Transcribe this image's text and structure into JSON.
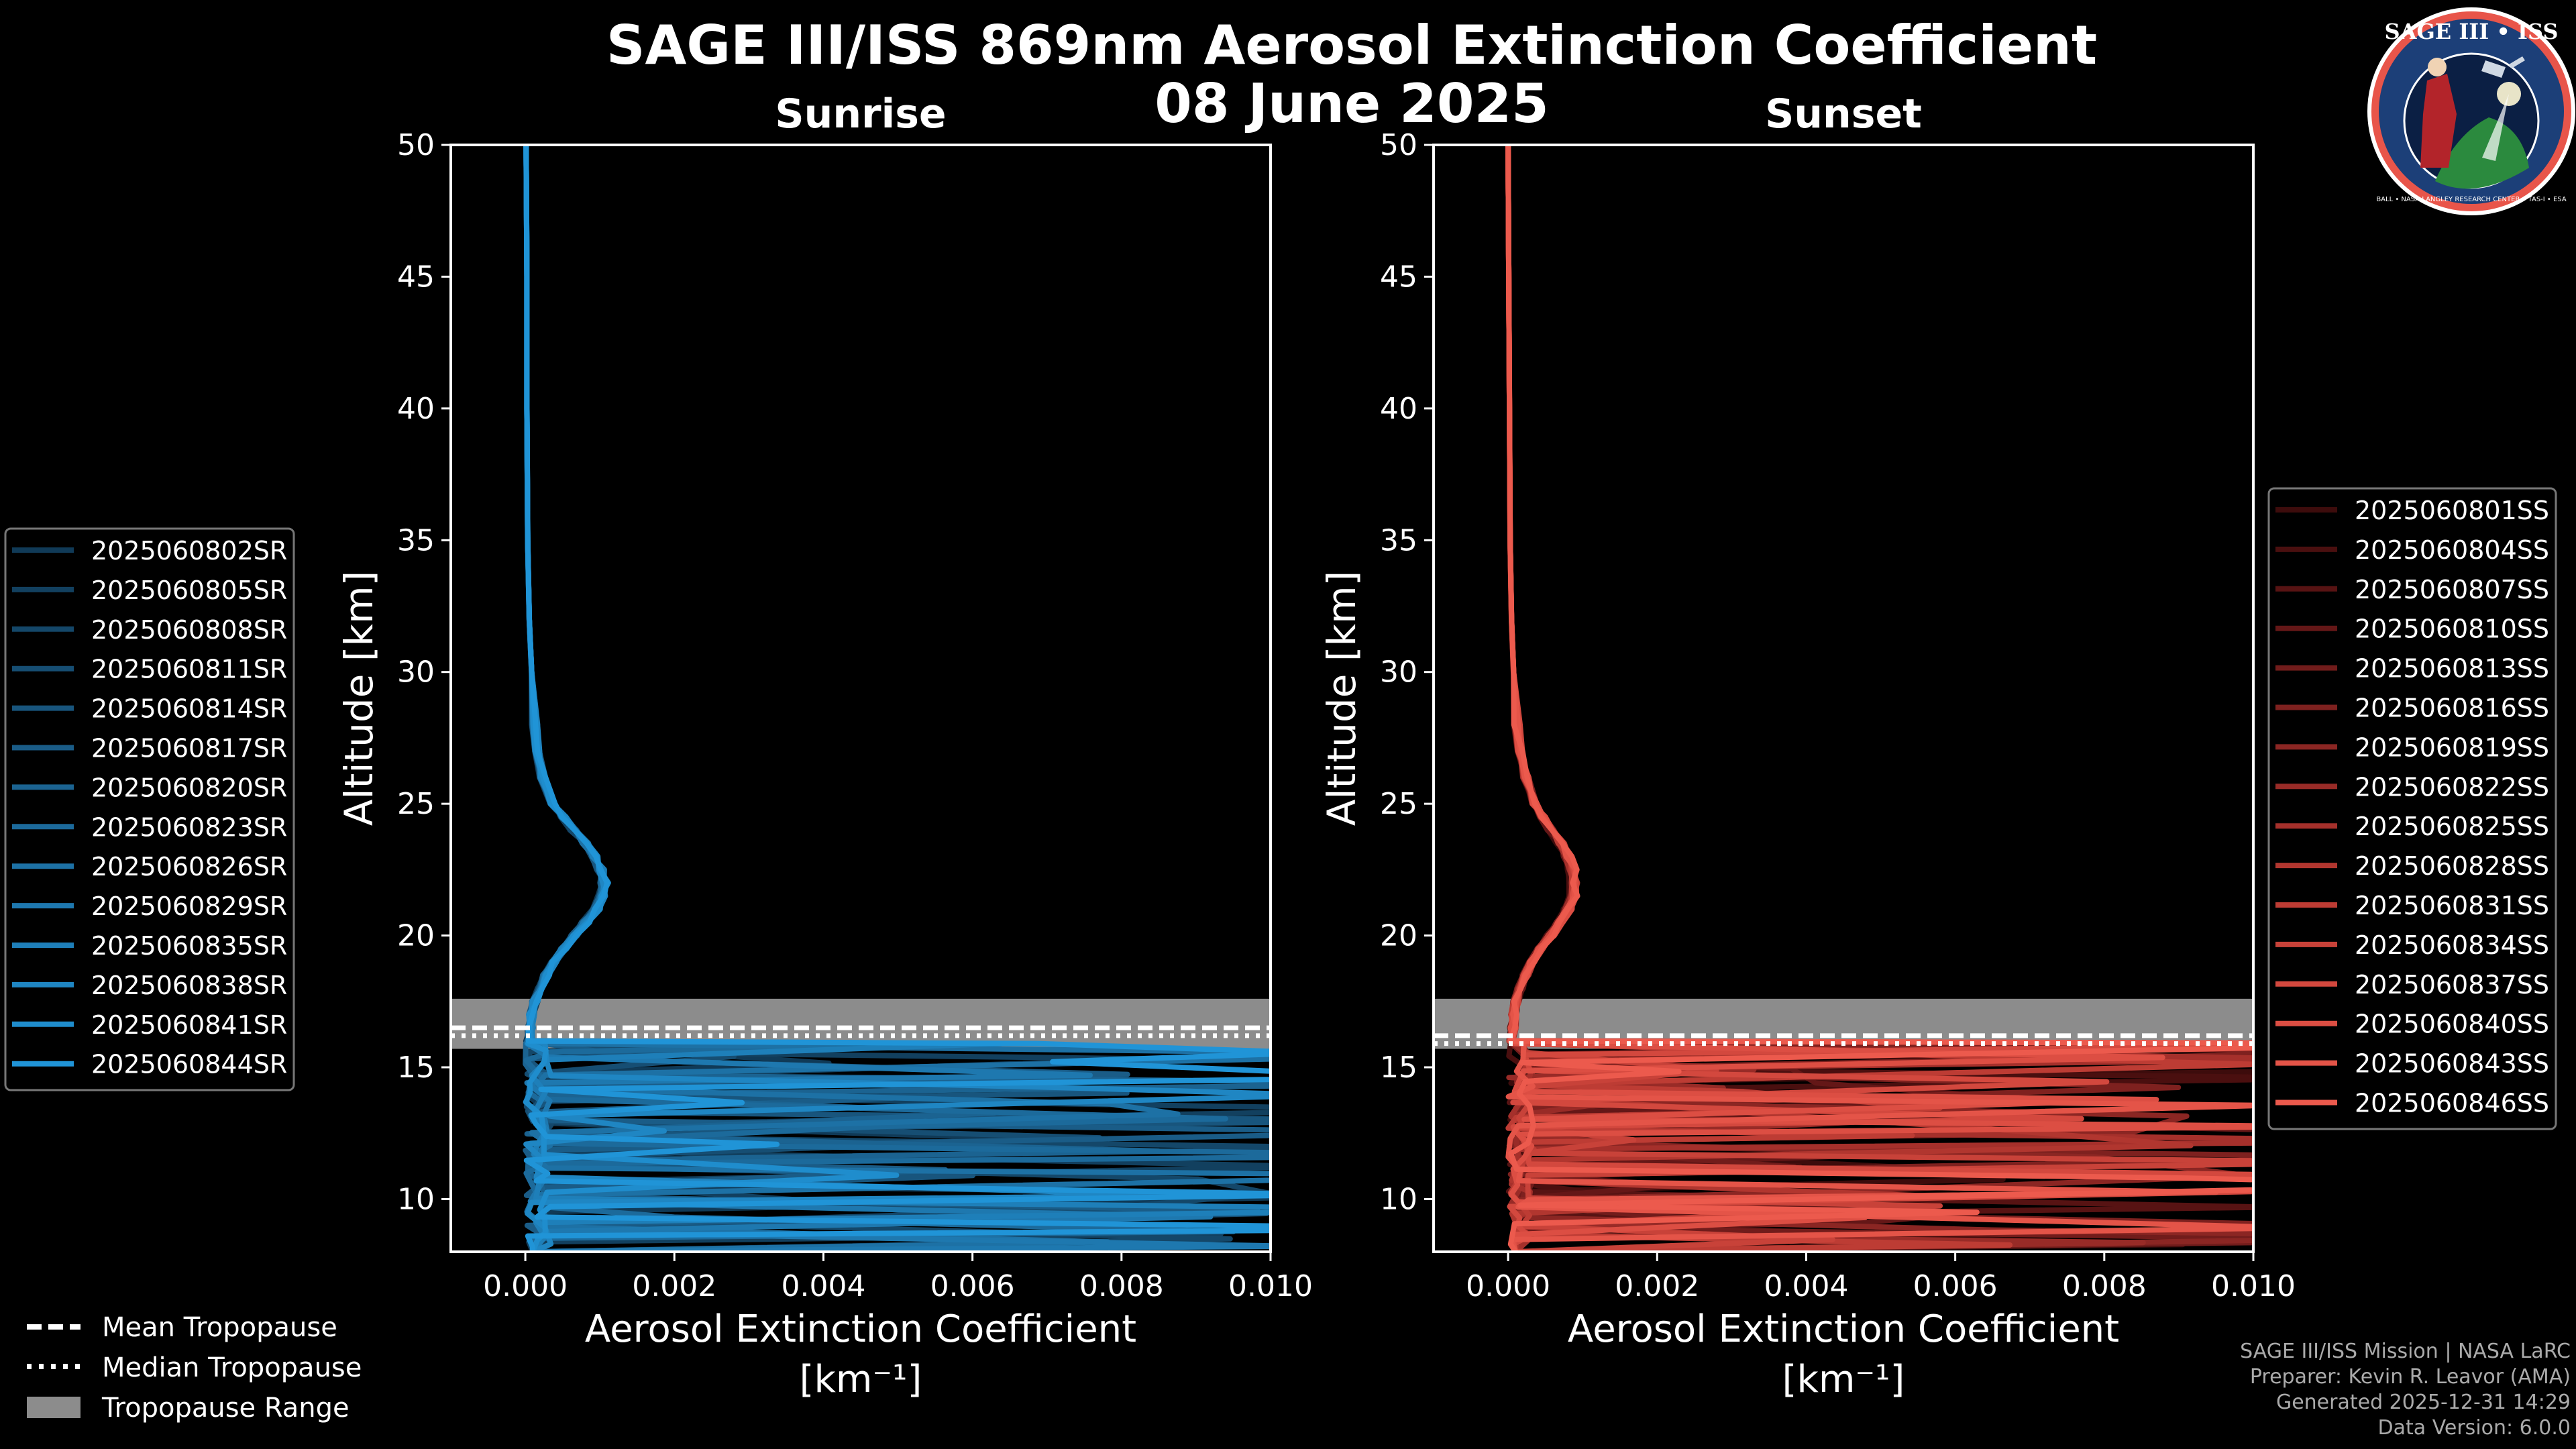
{
  "figure": {
    "title_line1": "SAGE III/ISS 869nm Aerosol Extinction Coefficient",
    "title_line2": "08 June 2025"
  },
  "logo": {
    "text": "SAGE III • ISS",
    "ring_text": "BALL • NASA LANGLEY RESEARCH CENTER • TAS-I • ESA"
  },
  "common_legend": [
    {
      "label": "Mean Tropopause",
      "style": "dashed"
    },
    {
      "label": "Median Tropopause",
      "style": "dotted"
    },
    {
      "label": "Tropopause Range",
      "style": "patch"
    }
  ],
  "footer": {
    "line1": "SAGE III/ISS Mission | NASA LaRC",
    "line2": "Preparer: Kevin R. Leavor (AMA)",
    "line3": "Generated 2025-12-31 14:29",
    "line4": "Data Version: 6.0.0"
  },
  "colors": {
    "sunrise_accent": "#1f8fd6",
    "sunset_accent": "#e8554a",
    "tropopause_band": "#8c8c8c"
  },
  "chart_data": [
    {
      "type": "line",
      "panel": "sunrise",
      "title": "Sunrise",
      "xlabel": "Aerosol Extinction Coefficient",
      "xunit": "[km⁻¹]",
      "ylabel": "Altitude [km]",
      "xlim": [
        -0.001,
        0.01
      ],
      "ylim": [
        8,
        50
      ],
      "xticks": [
        0.0,
        0.002,
        0.004,
        0.006,
        0.008,
        0.01
      ],
      "xtick_labels": [
        "0.000",
        "0.002",
        "0.004",
        "0.006",
        "0.008",
        "0.010"
      ],
      "yticks": [
        10,
        15,
        20,
        25,
        30,
        35,
        40,
        45,
        50
      ],
      "tropopause": {
        "min": 15.7,
        "max": 17.6,
        "mean": 16.5,
        "median": 16.2
      },
      "legend_position": "left",
      "series": [
        {
          "name": "2025060802SR",
          "color": "#103a57"
        },
        {
          "name": "2025060805SR",
          "color": "#12405f"
        },
        {
          "name": "2025060808SR",
          "color": "#144769"
        },
        {
          "name": "2025060811SR",
          "color": "#164e73"
        },
        {
          "name": "2025060814SR",
          "color": "#18557d"
        },
        {
          "name": "2025060817SR",
          "color": "#1a5c87"
        },
        {
          "name": "2025060820SR",
          "color": "#1b6391"
        },
        {
          "name": "2025060823SR",
          "color": "#1c6a9b"
        },
        {
          "name": "2025060826SR",
          "color": "#1d71a5"
        },
        {
          "name": "2025060829SR",
          "color": "#1e78af"
        },
        {
          "name": "2025060835SR",
          "color": "#1e7fb9"
        },
        {
          "name": "2025060838SR",
          "color": "#1f86c3"
        },
        {
          "name": "2025060841SR",
          "color": "#1f8dcd"
        },
        {
          "name": "2025060844SR",
          "color": "#2094d7"
        }
      ],
      "profile": {
        "altitude": [
          50,
          45,
          40,
          35,
          32,
          30,
          28,
          27,
          26,
          25,
          24.5,
          24,
          23.5,
          23,
          22.5,
          22,
          21.5,
          21,
          20.5,
          20,
          19.5,
          19,
          18.5,
          18,
          17.5,
          17,
          16.5,
          16
        ],
        "extinction": [
          1e-05,
          2e-05,
          2e-05,
          3e-05,
          5e-05,
          8e-05,
          0.00012,
          0.00016,
          0.00022,
          0.00035,
          0.00048,
          0.00062,
          0.00076,
          0.00088,
          0.00096,
          0.001,
          0.00098,
          0.0009,
          0.00076,
          0.00062,
          0.00048,
          0.00036,
          0.00026,
          0.00018,
          0.00012,
          8e-05,
          6e-05,
          5e-05
        ]
      }
    },
    {
      "type": "line",
      "panel": "sunset",
      "title": "Sunset",
      "xlabel": "Aerosol Extinction Coefficient",
      "xunit": "[km⁻¹]",
      "ylabel": "Altitude [km]",
      "xlim": [
        -0.001,
        0.01
      ],
      "ylim": [
        8,
        50
      ],
      "xticks": [
        0.0,
        0.002,
        0.004,
        0.006,
        0.008,
        0.01
      ],
      "xtick_labels": [
        "0.000",
        "0.002",
        "0.004",
        "0.006",
        "0.008",
        "0.010"
      ],
      "yticks": [
        10,
        15,
        20,
        25,
        30,
        35,
        40,
        45,
        50
      ],
      "tropopause": {
        "min": 15.7,
        "max": 17.6,
        "mean": 16.2,
        "median": 15.9
      },
      "legend_position": "right",
      "series": [
        {
          "name": "2025060801SS",
          "color": "#3d0c0c"
        },
        {
          "name": "2025060804SS",
          "color": "#4a0f0f"
        },
        {
          "name": "2025060807SS",
          "color": "#571313"
        },
        {
          "name": "2025060810SS",
          "color": "#641717"
        },
        {
          "name": "2025060813SS",
          "color": "#711c1b"
        },
        {
          "name": "2025060816SS",
          "color": "#7e211f"
        },
        {
          "name": "2025060819SS",
          "color": "#8b2623"
        },
        {
          "name": "2025060822SS",
          "color": "#982b27"
        },
        {
          "name": "2025060825SS",
          "color": "#a5302b"
        },
        {
          "name": "2025060828SS",
          "color": "#b1362f"
        },
        {
          "name": "2025060831SS",
          "color": "#bd3c34"
        },
        {
          "name": "2025060834SS",
          "color": "#c84239"
        },
        {
          "name": "2025060837SS",
          "color": "#d3483e"
        },
        {
          "name": "2025060840SS",
          "color": "#dc4e43"
        },
        {
          "name": "2025060843SS",
          "color": "#e45448"
        },
        {
          "name": "2025060846SS",
          "color": "#ec5a4d"
        }
      ],
      "profile": {
        "altitude": [
          50,
          45,
          40,
          35,
          32,
          30,
          28,
          27,
          26,
          25,
          24.5,
          24,
          23.5,
          23,
          22.5,
          22,
          21.5,
          21,
          20.5,
          20,
          19.5,
          19,
          18.5,
          18,
          17.5,
          17,
          16.5,
          16
        ],
        "extinction": [
          0.0,
          1e-05,
          2e-05,
          3e-05,
          5e-05,
          8e-05,
          0.00013,
          0.00018,
          0.00026,
          0.00038,
          0.0005,
          0.00064,
          0.00078,
          0.00088,
          0.00094,
          0.00097,
          0.00095,
          0.00088,
          0.00076,
          0.00062,
          0.00048,
          0.00036,
          0.00026,
          0.00018,
          0.00012,
          9e-05,
          7e-05,
          6e-05
        ]
      }
    }
  ]
}
